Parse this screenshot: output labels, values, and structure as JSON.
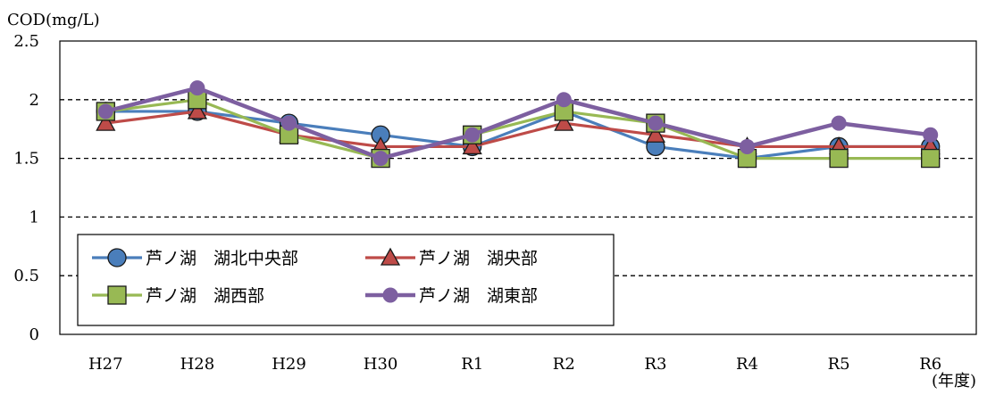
{
  "chart_data": {
    "type": "line",
    "title": "",
    "ylabel": "COD(mg/L)",
    "xlabel": "(年度)",
    "ylim": [
      0,
      2.5
    ],
    "yticks": [
      "0",
      "0.5",
      "1",
      "1.5",
      "2",
      "2.5"
    ],
    "grid": "dashed horizontal",
    "legend_position": "bottom-left",
    "categories": [
      "H27",
      "H28",
      "H29",
      "H30",
      "R1",
      "R2",
      "R3",
      "R4",
      "R5",
      "R6"
    ],
    "series": [
      {
        "name": "芦ノ湖　湖北中央部",
        "color": "#4a7ebb",
        "marker": "circle",
        "values": [
          1.9,
          1.9,
          1.8,
          1.7,
          1.6,
          1.9,
          1.6,
          1.5,
          1.6,
          1.6
        ]
      },
      {
        "name": "芦ノ湖　湖央部",
        "color": "#be4b48",
        "marker": "triangle",
        "values": [
          1.8,
          1.9,
          1.7,
          1.6,
          1.6,
          1.8,
          1.7,
          1.6,
          1.6,
          1.6
        ]
      },
      {
        "name": "芦ノ湖　湖西部",
        "color": "#98b954",
        "marker": "square",
        "values": [
          1.9,
          2.0,
          1.7,
          1.5,
          1.7,
          1.9,
          1.8,
          1.5,
          1.5,
          1.5
        ]
      },
      {
        "name": "芦ノ湖　湖東部",
        "color": "#7d5fa0",
        "marker": "circle-large",
        "values": [
          1.9,
          2.1,
          1.8,
          1.5,
          1.7,
          2.0,
          1.8,
          1.6,
          1.8,
          1.7
        ]
      }
    ]
  }
}
